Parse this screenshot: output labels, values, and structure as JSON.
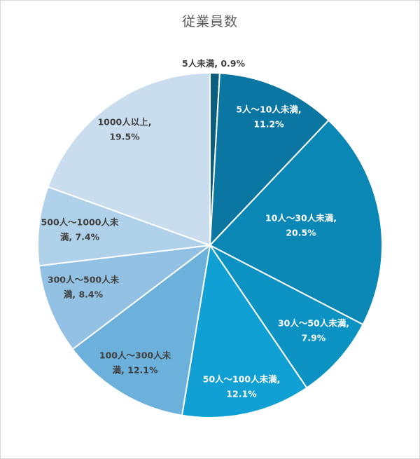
{
  "chart_data": {
    "type": "pie",
    "title": "従業員数",
    "start_angle_deg": 0,
    "direction": "clockwise",
    "slices": [
      {
        "label": "5人未満",
        "value": 0.9,
        "value_label": "0.9%",
        "color": "#0b5d7e",
        "label_color": "#404040",
        "label_lines": [
          "5人未満, 0.9%"
        ]
      },
      {
        "label": "5人～10人未満",
        "value": 11.2,
        "value_label": "11.2%",
        "color": "#0a76a1",
        "label_color": "#ffffff",
        "label_lines": [
          "5人～10人未満,",
          "11.2%"
        ]
      },
      {
        "label": "10人～30人未満",
        "value": 20.5,
        "value_label": "20.5%",
        "color": "#0b87b6",
        "label_color": "#ffffff",
        "label_lines": [
          "10人～30人未満,",
          "20.5%"
        ]
      },
      {
        "label": "30人～50人未満",
        "value": 7.9,
        "value_label": "7.9%",
        "color": "#0c93c4",
        "label_color": "#ffffff",
        "label_lines": [
          "30人～50人未満,",
          "7.9%"
        ]
      },
      {
        "label": "50人～100人未満",
        "value": 12.1,
        "value_label": "12.1%",
        "color": "#11a0d4",
        "label_color": "#ffffff",
        "label_lines": [
          "50人～100人未満,",
          "12.1%"
        ]
      },
      {
        "label": "100人～300人未満",
        "value": 12.1,
        "value_label": "12.1%",
        "color": "#6cb0dc",
        "label_color": "#404040",
        "label_lines": [
          "100人～300人未",
          "満, 12.1%"
        ]
      },
      {
        "label": "300人～500人未満",
        "value": 8.4,
        "value_label": "8.4%",
        "color": "#92c1e3",
        "label_color": "#404040",
        "label_lines": [
          "300人～500人未",
          "満, 8.4%"
        ]
      },
      {
        "label": "500人～1000人未満",
        "value": 7.4,
        "value_label": "7.4%",
        "color": "#b0d1ea",
        "label_color": "#404040",
        "label_lines": [
          "500人～1000人未",
          "満, 7.4%"
        ]
      },
      {
        "label": "1000人以上",
        "value": 19.5,
        "value_label": "19.5%",
        "color": "#c9ddef",
        "label_color": "#404040",
        "label_lines": [
          "1000人以上,",
          "19.5%"
        ]
      }
    ]
  }
}
